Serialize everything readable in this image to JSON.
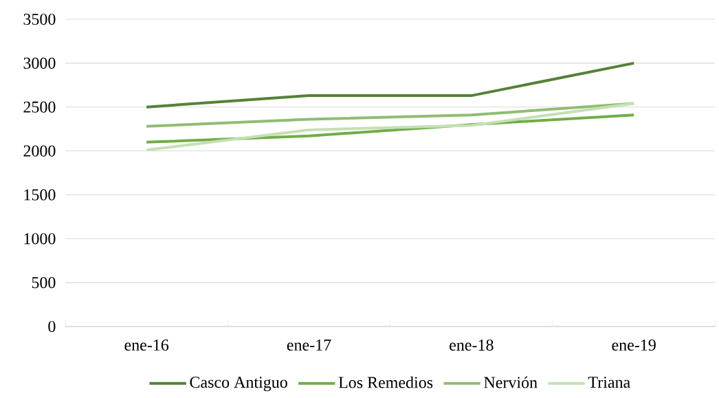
{
  "chart_data": {
    "type": "line",
    "categories": [
      "ene-16",
      "ene-17",
      "ene-18",
      "ene-19"
    ],
    "series": [
      {
        "name": "Casco Antiguo",
        "color": "#548235",
        "values": [
          2500,
          2630,
          2630,
          3000
        ]
      },
      {
        "name": "Los Remedios",
        "color": "#70ad47",
        "values": [
          2100,
          2170,
          2300,
          2410
        ]
      },
      {
        "name": "Nervión",
        "color": "#8fbd73",
        "values": [
          2280,
          2360,
          2410,
          2540
        ]
      },
      {
        "name": "Triana",
        "color": "#c5e0b4",
        "values": [
          2010,
          2240,
          2290,
          2540
        ]
      }
    ],
    "ylim": [
      0,
      3500
    ],
    "yticks": [
      0,
      500,
      1000,
      1500,
      2000,
      2500,
      3000,
      3500
    ],
    "grid": "y",
    "legend": "bottom",
    "marker": "none",
    "line_style": "solid"
  }
}
